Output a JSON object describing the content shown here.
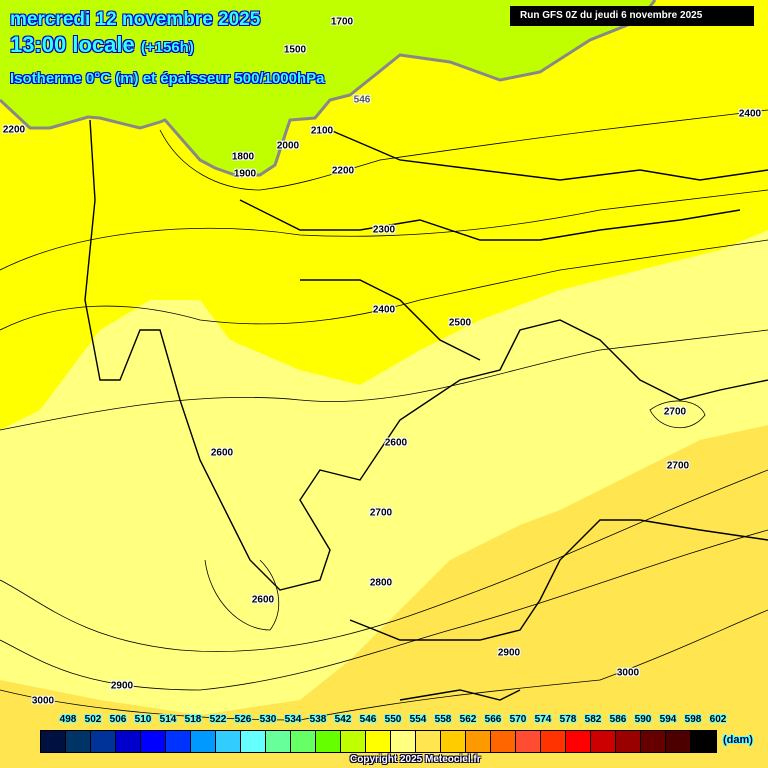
{
  "header": {
    "date": "mercredi 12 novembre 2025",
    "time": "13:00 locale",
    "lead": "(+156h)",
    "parameter": "Isotherme 0°C (m) et épaisseur 500/1000hPa",
    "run": "Run GFS 0Z du jeudi 6 novembre 2025"
  },
  "colors": {
    "green_zone": "#c0ff00",
    "yellow_zone": "#ffff00",
    "light_yellow_zone": "#ffff80",
    "gold_zone": "#ffe650",
    "thickness_546_line": "#888888"
  },
  "contour_labels": [
    "1500",
    "1700",
    "546",
    "2200",
    "2100",
    "2000",
    "1800",
    "1900",
    "2200",
    "2300",
    "2400",
    "2400",
    "2500",
    "2600",
    "2600",
    "2700",
    "2700",
    "2700",
    "2800",
    "2600",
    "2900",
    "2900",
    "3000",
    "3000"
  ],
  "legend": {
    "ticks": [
      "498",
      "502",
      "506",
      "510",
      "514",
      "518",
      "522",
      "526",
      "530",
      "534",
      "538",
      "542",
      "546",
      "550",
      "554",
      "558",
      "562",
      "566",
      "570",
      "574",
      "578",
      "582",
      "586",
      "590",
      "594",
      "598",
      "602"
    ],
    "colors": [
      "#001040",
      "#003366",
      "#003399",
      "#0000cc",
      "#0000ff",
      "#0033ff",
      "#0099ff",
      "#33ccff",
      "#66ffff",
      "#66ff99",
      "#66ff66",
      "#66ff00",
      "#c0ff00",
      "#ffff00",
      "#ffff80",
      "#ffe650",
      "#ffcc00",
      "#ff9900",
      "#ff6600",
      "#ff4c33",
      "#ff3300",
      "#ff0000",
      "#cc0000",
      "#990000",
      "#660000",
      "#4c0000",
      "#000000"
    ],
    "unit": "(dam)"
  },
  "copyright": "Copyright 2025 Meteociel.fr"
}
